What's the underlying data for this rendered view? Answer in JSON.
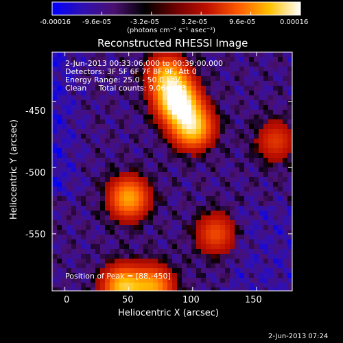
{
  "chart_data": {
    "type": "heatmap",
    "title": "Reconstructed RHESSI Image",
    "xlabel": "Heliocentric X (arcsec)",
    "ylabel": "Heliocentric Y (arcsec)",
    "xlim": [
      -10,
      178
    ],
    "ylim": [
      -593,
      -413
    ],
    "xticks": [
      0,
      50,
      100,
      150
    ],
    "yticks": [
      -450,
      -500,
      -550
    ],
    "colorbar": {
      "ticks": [
        "-0.00016",
        "-9.6e-05",
        "-3.2e-05",
        "3.2e-05",
        "9.6e-05",
        "0.00016"
      ],
      "units_label": "(photons cm⁻² s⁻¹ asec⁻²)",
      "range": [
        -0.00016,
        0.00016
      ],
      "colormap": [
        "#0000ff",
        "#3010b0",
        "#4a1070",
        "#000000",
        "#700000",
        "#c01000",
        "#ff5a00",
        "#ffc000",
        "#ffffff"
      ]
    },
    "annotations": [
      "2-Jun-2013 00:33:06.000 to 00:39:00.000",
      "Detectors: 3F 5F 6F 7F 8F 9F, Att 0",
      "Energy Range: 25.0 - 50.0 keV",
      "Clean     Total counts: 9.06e+03"
    ],
    "peak_label": "Position of Peak = [88,-450]",
    "sources": [
      {
        "x": 88,
        "y": -450,
        "intensity": 0.00016
      },
      {
        "x": 100,
        "y": -470,
        "intensity": 0.00013
      },
      {
        "x": 80,
        "y": -430,
        "intensity": 0.0001
      },
      {
        "x": 50,
        "y": -523,
        "intensity": 0.00011
      },
      {
        "x": 45,
        "y": -590,
        "intensity": 0.00012
      },
      {
        "x": 70,
        "y": -590,
        "intensity": 0.0001
      },
      {
        "x": 118,
        "y": -550,
        "intensity": 7e-05
      },
      {
        "x": 165,
        "y": -480,
        "intensity": 6e-05
      }
    ]
  },
  "footer_timestamp": "2-Jun-2013 07:24"
}
